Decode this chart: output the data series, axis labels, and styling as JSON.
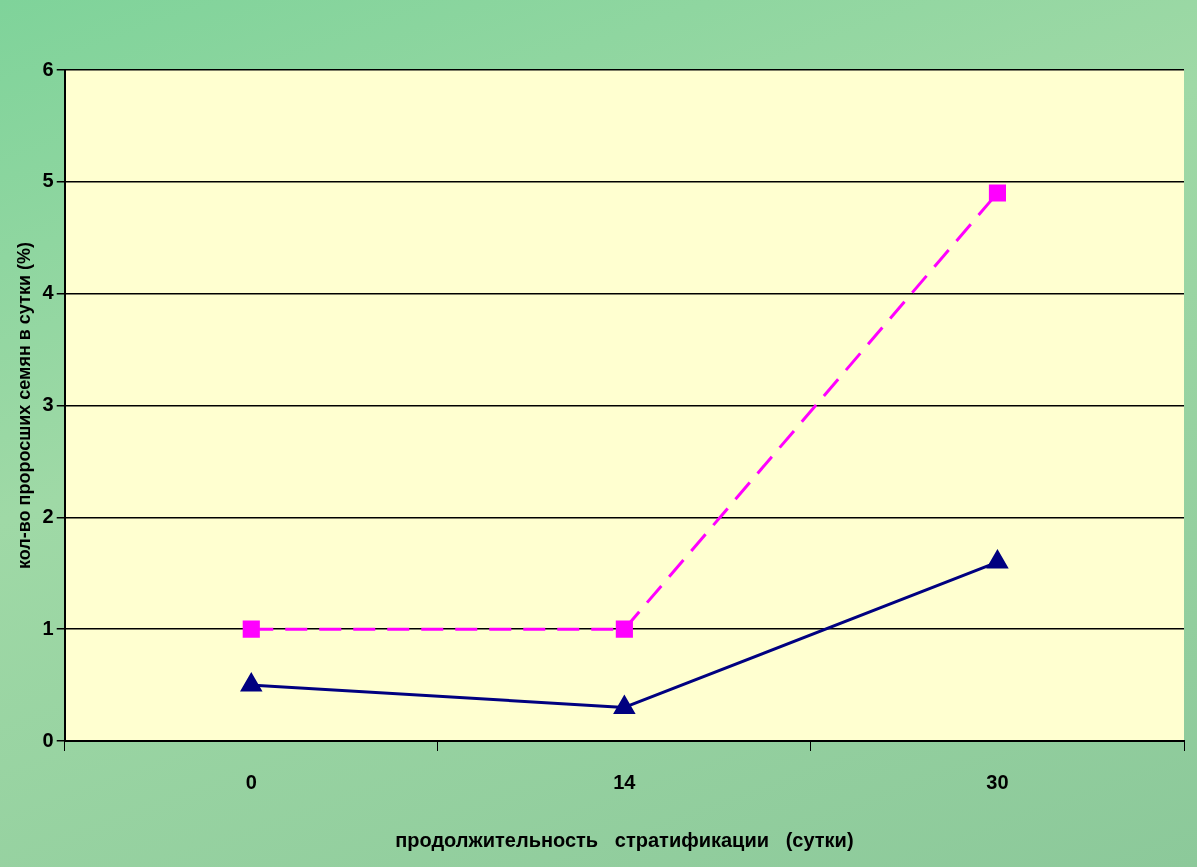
{
  "chart_data": {
    "type": "line",
    "xlabel": "продолжительность   стратификации   (сутки)",
    "ylabel": "кол-во проросших семян в сутки (%)",
    "categories": [
      "0",
      "14",
      "30"
    ],
    "series": [
      {
        "color": "#ff00ff",
        "values": [
          1,
          1,
          4.9
        ],
        "marker": "square",
        "line_style": "dashed"
      },
      {
        "color": "#000080",
        "values": [
          0.5,
          0.3,
          1.6
        ],
        "marker": "triangle",
        "line_style": "solid"
      }
    ],
    "ylim": [
      0,
      6
    ],
    "yticks": [
      0,
      1,
      2,
      3,
      4,
      5,
      6
    ],
    "grid": "y",
    "legend": false
  }
}
